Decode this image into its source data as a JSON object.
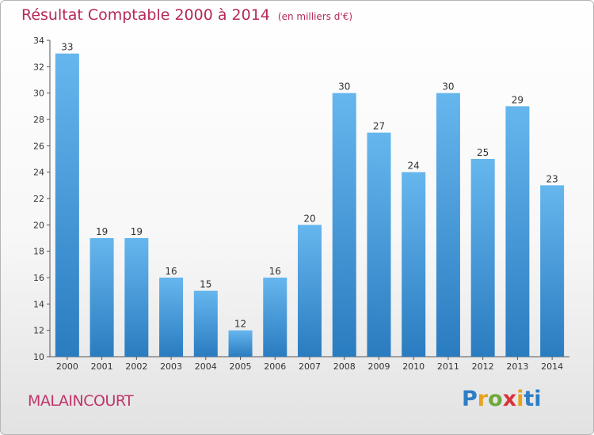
{
  "title": "Résultat Comptable 2000 à 2014",
  "subtitle": "(en milliers d'€)",
  "commune": "MALAINCOURT",
  "logo": [
    "P",
    "r",
    "o",
    "x",
    "i",
    "t",
    "i"
  ],
  "colors": {
    "bar_light": "#66b6ee",
    "bar_dark": "#2a7cc0",
    "title": "#b5285a"
  },
  "chart_data": {
    "type": "bar",
    "title": "Résultat Comptable 2000 à 2014",
    "categories": [
      "2000",
      "2001",
      "2002",
      "2003",
      "2004",
      "2005",
      "2006",
      "2007",
      "2008",
      "2009",
      "2010",
      "2011",
      "2012",
      "2013",
      "2014"
    ],
    "values": [
      33,
      19,
      19,
      16,
      15,
      12,
      16,
      20,
      30,
      27,
      24,
      30,
      25,
      29,
      23
    ],
    "ylim": [
      10,
      34
    ],
    "yticks": [
      10,
      12,
      14,
      16,
      18,
      20,
      22,
      24,
      26,
      28,
      30,
      32,
      34
    ],
    "grid": false,
    "xlabel": "",
    "ylabel": ""
  }
}
